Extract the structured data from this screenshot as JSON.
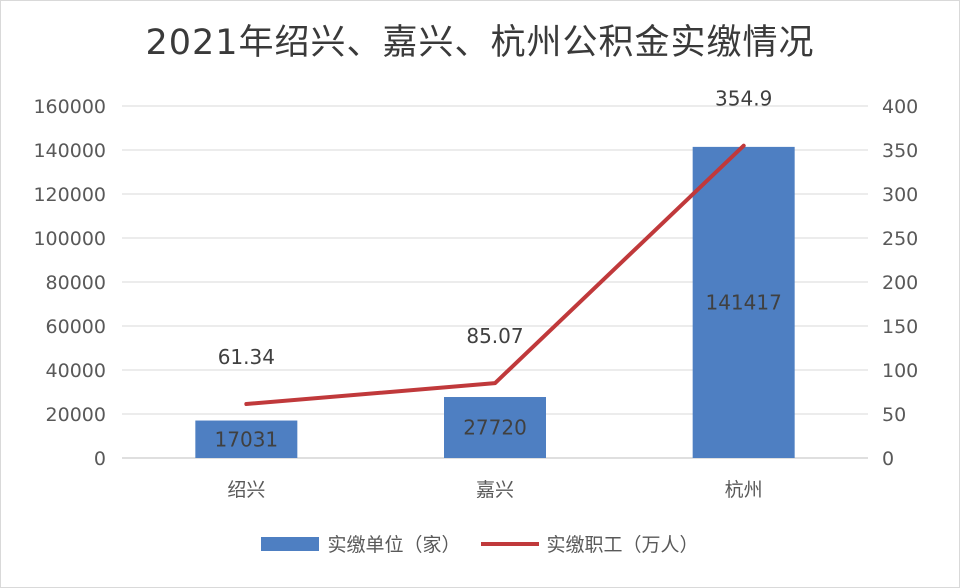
{
  "chart_data": {
    "type": "bar",
    "title": "2021年绍兴、嘉兴、杭州公积金实缴情况",
    "categories": [
      "绍兴",
      "嘉兴",
      "杭州"
    ],
    "series": [
      {
        "name": "实缴单位（家）",
        "type": "bar",
        "axis": "left",
        "values": [
          17031,
          27720,
          141417
        ],
        "labels": [
          "17031",
          "27720",
          "141417"
        ],
        "color": "#4e7fc2"
      },
      {
        "name": "实缴职工（万人）",
        "type": "line",
        "axis": "right",
        "values": [
          61.34,
          85.07,
          354.9
        ],
        "labels": [
          "61.34",
          "85.07",
          "354.9"
        ],
        "color": "#c0393b"
      }
    ],
    "y_left": {
      "min": 0,
      "max": 160000,
      "step": 20000,
      "ticks": [
        "0",
        "20000",
        "40000",
        "60000",
        "80000",
        "100000",
        "120000",
        "140000",
        "160000"
      ]
    },
    "y_right": {
      "min": 0,
      "max": 400,
      "step": 50,
      "ticks": [
        "0",
        "50",
        "100",
        "150",
        "200",
        "250",
        "300",
        "350",
        "400"
      ]
    },
    "grid": true,
    "legend_position": "bottom"
  }
}
